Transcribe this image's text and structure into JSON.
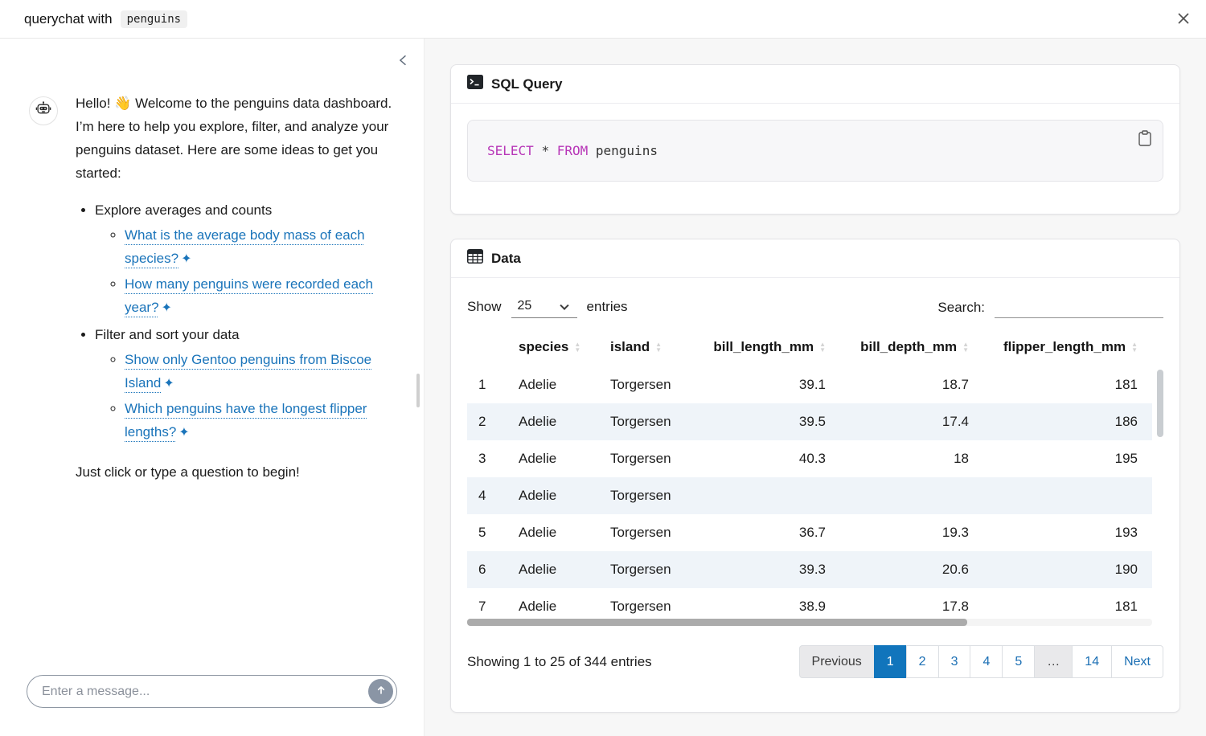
{
  "titlebar": {
    "app_title": "querychat with",
    "dataset_chip": "penguins"
  },
  "chat": {
    "message": {
      "intro": "Hello! 👋 Welcome to the penguins data dashboard. I’m here to help you explore, filter, and analyze your penguins dataset. Here are some ideas to get you started:",
      "sections": [
        {
          "title": "Explore averages and counts",
          "suggestions": [
            "What is the average body mass of each species?",
            "How many penguins were recorded each year?"
          ]
        },
        {
          "title": "Filter and sort your data",
          "suggestions": [
            "Show only Gentoo penguins from Biscoe Island",
            "Which penguins have the longest flipper lengths?"
          ]
        }
      ],
      "outro": "Just click or type a question to begin!"
    },
    "input_placeholder": "Enter a message..."
  },
  "sql_card": {
    "title": "SQL Query",
    "code": {
      "keyword1": "SELECT",
      "operator": "*",
      "keyword2": "FROM",
      "table": "penguins"
    }
  },
  "data_card": {
    "title": "Data",
    "length_control": {
      "show_label": "Show",
      "selected": "25",
      "entries_label": "entries"
    },
    "search": {
      "label": "Search:",
      "value": ""
    },
    "table": {
      "columns": [
        "species",
        "island",
        "bill_length_mm",
        "bill_depth_mm",
        "flipper_length_mm"
      ],
      "rows": [
        [
          "1",
          "Adelie",
          "Torgersen",
          "39.1",
          "18.7",
          "181"
        ],
        [
          "2",
          "Adelie",
          "Torgersen",
          "39.5",
          "17.4",
          "186"
        ],
        [
          "3",
          "Adelie",
          "Torgersen",
          "40.3",
          "18",
          "195"
        ],
        [
          "4",
          "Adelie",
          "Torgersen",
          "",
          "",
          ""
        ],
        [
          "5",
          "Adelie",
          "Torgersen",
          "36.7",
          "19.3",
          "193"
        ],
        [
          "6",
          "Adelie",
          "Torgersen",
          "39.3",
          "20.6",
          "190"
        ],
        [
          "7",
          "Adelie",
          "Torgersen",
          "38.9",
          "17.8",
          "181"
        ]
      ]
    },
    "info": "Showing 1 to 25 of 344 entries",
    "pagination": [
      {
        "label": "Previous",
        "state": "disabled"
      },
      {
        "label": "1",
        "state": "active"
      },
      {
        "label": "2",
        "state": "link"
      },
      {
        "label": "3",
        "state": "link"
      },
      {
        "label": "4",
        "state": "link"
      },
      {
        "label": "5",
        "state": "link"
      },
      {
        "label": "…",
        "state": "disabled"
      },
      {
        "label": "14",
        "state": "link"
      },
      {
        "label": "Next",
        "state": "link"
      }
    ]
  },
  "icons": {
    "sparkle": "✦",
    "sort_up": "▲",
    "sort_down": "▼"
  },
  "colors": {
    "accent_blue": "#1175bc",
    "link_blue": "#1a74ba",
    "sql_keyword": "#b735b7",
    "stripe": "#eff4f9"
  }
}
